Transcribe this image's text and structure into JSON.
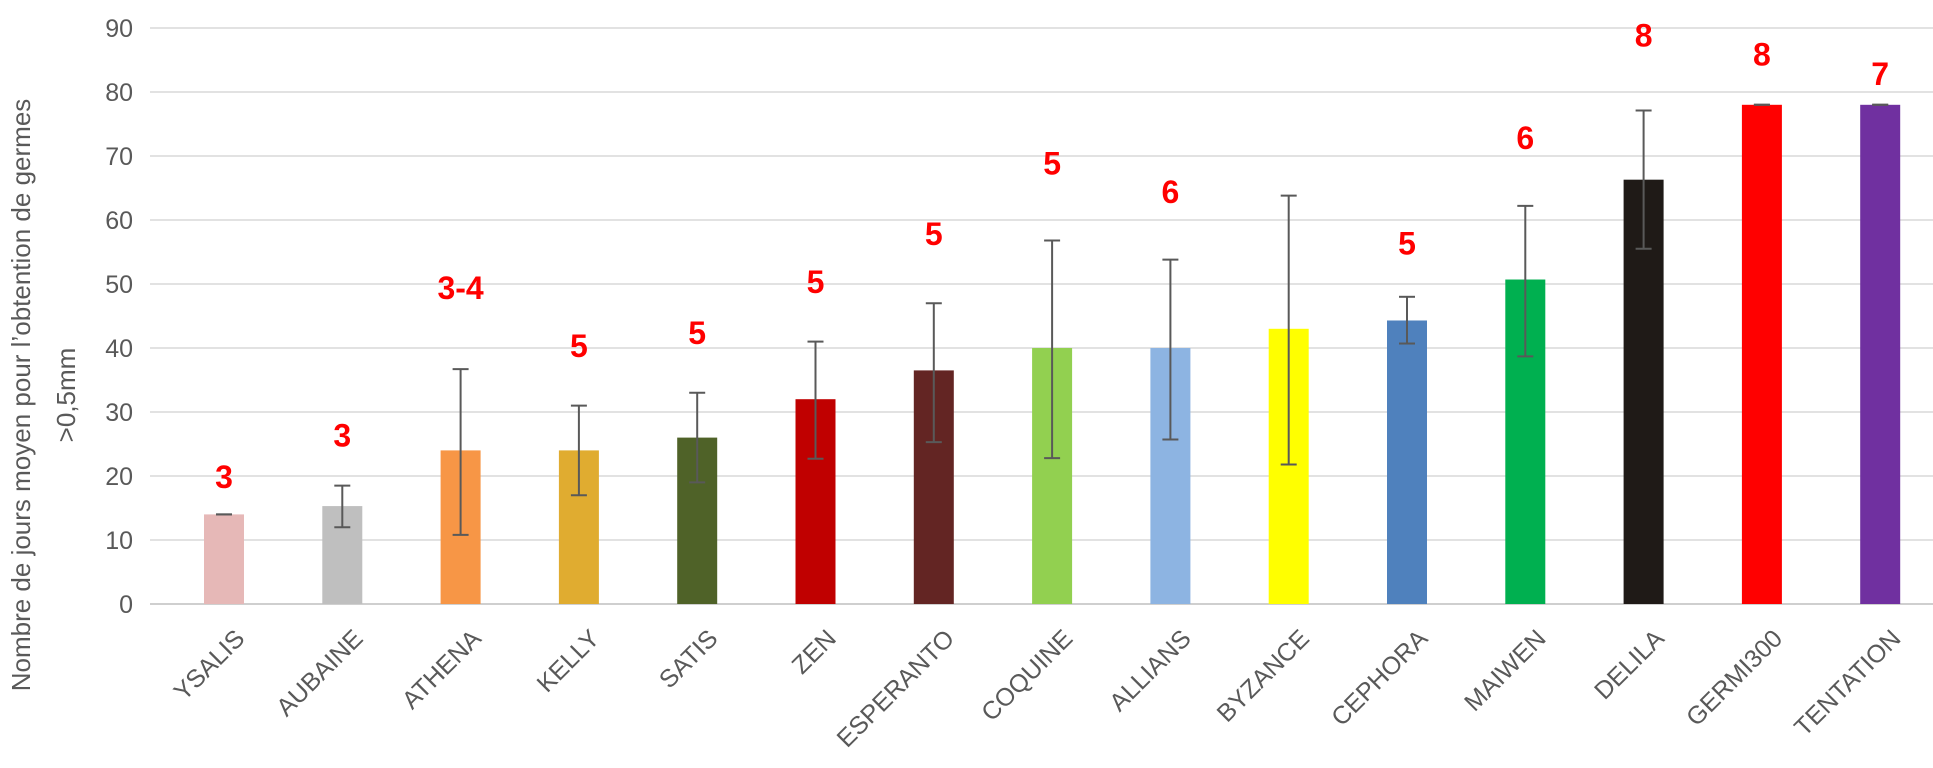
{
  "chart_data": {
    "type": "bar",
    "ylabel": [
      "Nombre de jours moyen pour l’obtention de germes",
      ">0,5mm"
    ],
    "ylim": [
      0,
      90
    ],
    "yticks": [
      0,
      10,
      20,
      30,
      40,
      50,
      60,
      70,
      80,
      90
    ],
    "grid": true,
    "legend": "none",
    "categories": [
      "YSALIS",
      "AUBAINE",
      "ATHENA",
      "KELLY",
      "SATIS",
      "ZEN",
      "ESPERANTO",
      "COQUINE",
      "ALLIANS",
      "BYZANCE",
      "CEPHORA",
      "MAIWEN",
      "DELILA",
      "GERMI300",
      "TENTATION"
    ],
    "values": [
      14,
      15.3,
      24,
      24,
      26,
      32,
      36.5,
      40,
      40,
      43,
      44.3,
      50.7,
      66.3,
      78,
      78
    ],
    "error_low": [
      14,
      12,
      10.8,
      17,
      19,
      22.7,
      25.3,
      22.8,
      25.7,
      21.8,
      40.7,
      38.7,
      55.5,
      78,
      78
    ],
    "error_high": [
      14,
      18.5,
      36.7,
      31,
      33,
      41,
      47,
      56.8,
      53.8,
      63.8,
      48,
      62.2,
      77.1,
      78,
      78
    ],
    "colors": [
      "#e6b8b7",
      "#bfbfbf",
      "#f79646",
      "#e0ac30",
      "#4f6228",
      "#c00000",
      "#632523",
      "#92d050",
      "#8db4e2",
      "#ffff00",
      "#4f81bd",
      "#00b050",
      "#1f1a17",
      "#ff0000",
      "#7030a0"
    ],
    "data_labels": [
      "3",
      "3",
      "3-4",
      "5",
      "5",
      "5",
      "5",
      "5",
      "6",
      "",
      "5",
      "6",
      "8",
      "8",
      "7"
    ],
    "data_label_positions": [
      20,
      26.5,
      49.5,
      40.5,
      42.5,
      50.5,
      58,
      69,
      64.5,
      null,
      56.5,
      73,
      89,
      86,
      83
    ],
    "data_label_color": "#ff0000"
  }
}
